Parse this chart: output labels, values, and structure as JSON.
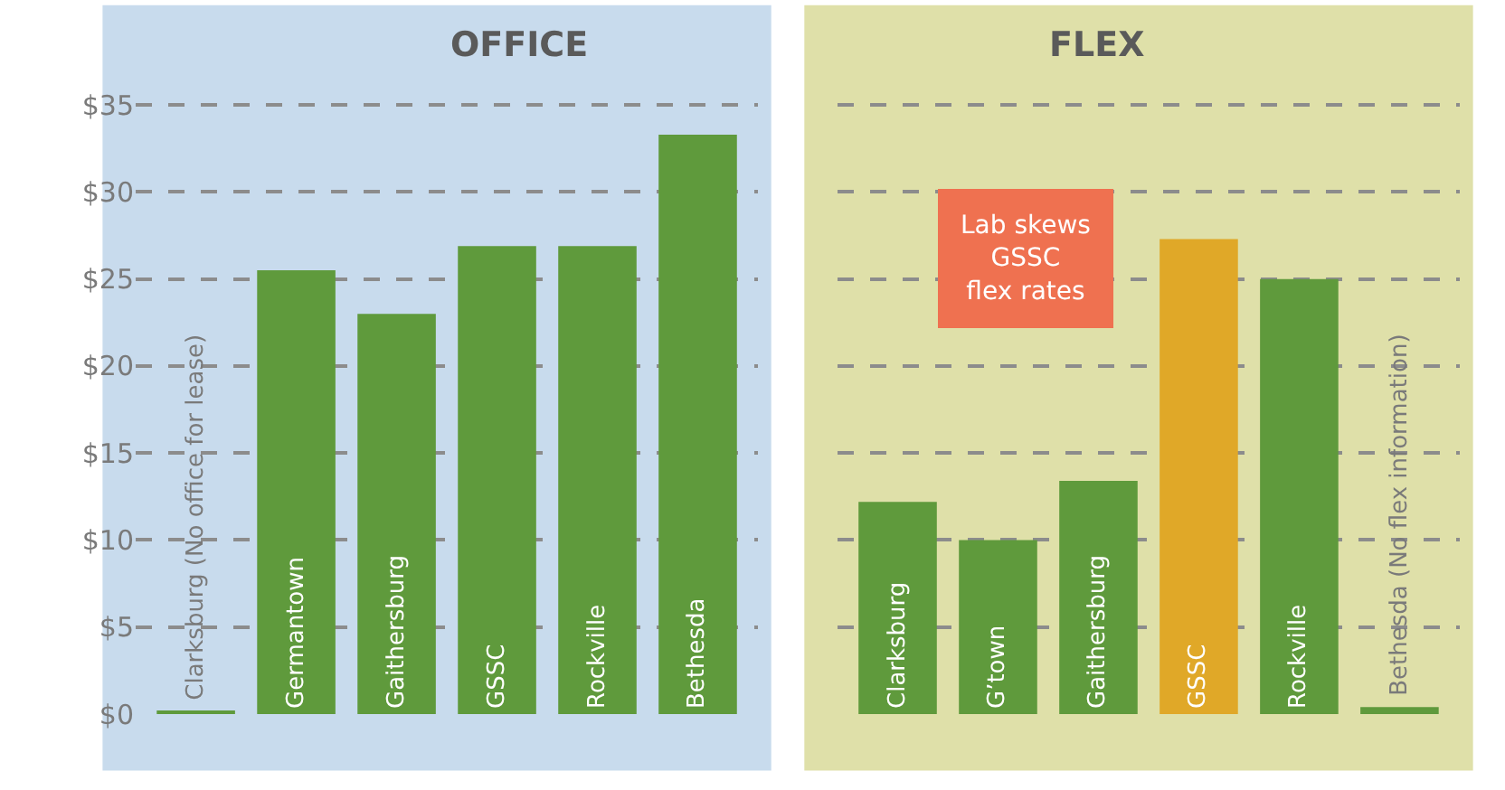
{
  "chart_data": [
    {
      "type": "bar",
      "title": "OFFICE",
      "categories": [
        "Clarksburg (No office for lease)",
        "Germantown",
        "Gaithersburg",
        "GSSC",
        "Rockville",
        "Bethesda"
      ],
      "values": [
        0.2,
        25.5,
        23.0,
        26.9,
        26.9,
        33.3
      ],
      "color": "#5f9a3c",
      "ylim": [
        0,
        35
      ],
      "yticks": [
        {
          "value": 0,
          "label": "$0"
        },
        {
          "value": 5,
          "label": "$5"
        },
        {
          "value": 10,
          "label": "$10"
        },
        {
          "value": 15,
          "label": "$15"
        },
        {
          "value": 20,
          "label": "$20"
        },
        {
          "value": 25,
          "label": "$25"
        },
        {
          "value": 30,
          "label": "$30"
        },
        {
          "value": 35,
          "label": "$35"
        }
      ],
      "grid": "y",
      "tick_labels": "y"
    },
    {
      "type": "bar",
      "title": "FLEX",
      "categories": [
        "Clarksburg",
        "G’town",
        "Gaithersburg",
        "GSSC",
        "Rockville",
        "Bethesda (No flex information)"
      ],
      "values": [
        12.2,
        10.0,
        13.4,
        27.3,
        25.0,
        0.4
      ],
      "colors": [
        "#5f9a3c",
        "#5f9a3c",
        "#5f9a3c",
        "#e0a828",
        "#5f9a3c",
        "#5f9a3c"
      ],
      "ylim": [
        0,
        35
      ],
      "yticks": [
        0,
        5,
        10,
        15,
        20,
        25,
        30,
        35
      ],
      "grid": "y",
      "tick_labels": false,
      "annotations": [
        "Lab skews\nGSSC\nflex rates"
      ]
    }
  ]
}
